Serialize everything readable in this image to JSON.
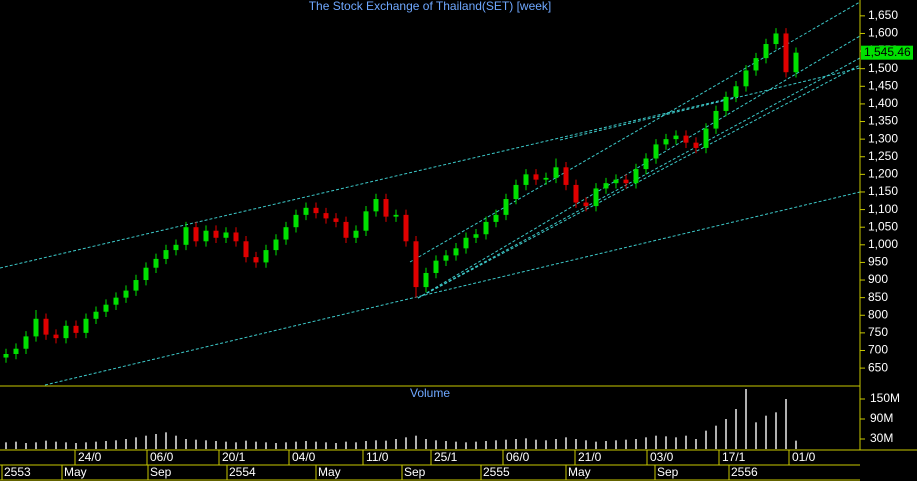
{
  "chart_data": {
    "type": "candlestick",
    "title": "The Stock Exchange of Thailand(SET) [week]",
    "open": [
      680,
      690,
      705,
      740,
      790,
      745,
      735,
      770,
      750,
      790,
      810,
      830,
      850,
      870,
      900,
      935,
      960,
      985,
      1000,
      1050,
      1010,
      1040,
      1020,
      1035,
      1010,
      965,
      950,
      985,
      1015,
      1050,
      1085,
      1105,
      1090,
      1075,
      1065,
      1020,
      1040,
      1095,
      1130,
      1080,
      1085,
      1010,
      880,
      920,
      955,
      970,
      990,
      1020,
      1030,
      1065,
      1085,
      1130,
      1170,
      1200,
      1185,
      1190,
      1220,
      1170,
      1120,
      1110,
      1160,
      1175,
      1185,
      1175,
      1215,
      1245,
      1285,
      1300,
      1310,
      1290,
      1275,
      1330,
      1380,
      1420,
      1450,
      1495,
      1530,
      1570,
      1600,
      1490
    ],
    "high": [
      705,
      720,
      755,
      815,
      805,
      760,
      785,
      785,
      805,
      825,
      845,
      865,
      885,
      915,
      950,
      975,
      1000,
      1015,
      1065,
      1065,
      1055,
      1055,
      1050,
      1050,
      1025,
      980,
      1000,
      1030,
      1065,
      1100,
      1120,
      1120,
      1105,
      1090,
      1080,
      1055,
      1110,
      1145,
      1145,
      1100,
      1100,
      1025,
      935,
      970,
      985,
      1005,
      1035,
      1045,
      1080,
      1100,
      1145,
      1185,
      1215,
      1215,
      1205,
      1245,
      1235,
      1185,
      1135,
      1175,
      1190,
      1200,
      1200,
      1230,
      1260,
      1300,
      1315,
      1325,
      1325,
      1305,
      1345,
      1395,
      1435,
      1465,
      1510,
      1545,
      1585,
      1615,
      1615,
      1560
    ],
    "low": [
      665,
      675,
      690,
      725,
      730,
      720,
      720,
      735,
      735,
      775,
      795,
      815,
      835,
      855,
      885,
      920,
      945,
      970,
      985,
      995,
      995,
      1005,
      1005,
      995,
      950,
      935,
      935,
      970,
      1000,
      1035,
      1070,
      1075,
      1060,
      1050,
      1005,
      1005,
      1025,
      1080,
      1065,
      1065,
      995,
      850,
      865,
      905,
      940,
      955,
      975,
      1005,
      1015,
      1050,
      1070,
      1115,
      1155,
      1170,
      1170,
      1175,
      1155,
      1105,
      1095,
      1095,
      1145,
      1160,
      1160,
      1160,
      1200,
      1230,
      1270,
      1285,
      1275,
      1260,
      1260,
      1315,
      1365,
      1405,
      1435,
      1480,
      1515,
      1555,
      1475,
      1475
    ],
    "close": [
      690,
      705,
      740,
      790,
      745,
      735,
      770,
      750,
      790,
      810,
      830,
      850,
      870,
      900,
      935,
      960,
      985,
      1000,
      1050,
      1010,
      1040,
      1020,
      1035,
      1010,
      965,
      950,
      985,
      1015,
      1050,
      1085,
      1105,
      1090,
      1075,
      1065,
      1020,
      1040,
      1095,
      1130,
      1080,
      1085,
      1010,
      880,
      920,
      955,
      970,
      990,
      1020,
      1030,
      1065,
      1085,
      1130,
      1170,
      1200,
      1185,
      1190,
      1220,
      1170,
      1120,
      1110,
      1160,
      1175,
      1185,
      1175,
      1215,
      1245,
      1285,
      1300,
      1310,
      1290,
      1275,
      1330,
      1380,
      1420,
      1450,
      1495,
      1530,
      1570,
      1600,
      1490,
      1545.46
    ],
    "last_label": "1,545.46",
    "up_color": "#00e000",
    "down_color": "#e00000",
    "ylim": [
      602,
      1695
    ],
    "yticks": [
      {
        "value": 1650,
        "label": "1,650"
      },
      {
        "value": 1600,
        "label": "1,600"
      },
      {
        "value": 1550,
        "label": "1,550"
      },
      {
        "value": 1500,
        "label": "1,500"
      },
      {
        "value": 1450,
        "label": "1,450"
      },
      {
        "value": 1400,
        "label": "1,400"
      },
      {
        "value": 1350,
        "label": "1,350"
      },
      {
        "value": 1300,
        "label": "1,300"
      },
      {
        "value": 1250,
        "label": "1,250"
      },
      {
        "value": 1200,
        "label": "1,200"
      },
      {
        "value": 1150,
        "label": "1,150"
      },
      {
        "value": 1100,
        "label": "1,100"
      },
      {
        "value": 1050,
        "label": "1,050"
      },
      {
        "value": 1000,
        "label": "1,000"
      },
      950,
      900,
      850,
      800,
      750,
      700,
      650
    ],
    "volume_title": "Volume",
    "volume": [
      20000000,
      22000000,
      18000000,
      20000000,
      25000000,
      22000000,
      20000000,
      18000000,
      20000000,
      22000000,
      24000000,
      26000000,
      30000000,
      35000000,
      40000000,
      45000000,
      50000000,
      40000000,
      30000000,
      28000000,
      26000000,
      24000000,
      22000000,
      20000000,
      25000000,
      22000000,
      20000000,
      18000000,
      20000000,
      22000000,
      24000000,
      22000000,
      20000000,
      18000000,
      22000000,
      20000000,
      24000000,
      26000000,
      25000000,
      30000000,
      35000000,
      40000000,
      30000000,
      26000000,
      24000000,
      22000000,
      20000000,
      22000000,
      24000000,
      26000000,
      28000000,
      30000000,
      32000000,
      28000000,
      26000000,
      30000000,
      35000000,
      30000000,
      26000000,
      22000000,
      24000000,
      26000000,
      28000000,
      30000000,
      35000000,
      40000000,
      38000000,
      35000000,
      40000000,
      30000000,
      55000000,
      70000000,
      90000000,
      120000000,
      180000000,
      80000000,
      100000000,
      110000000,
      150000000,
      25000000
    ],
    "volume_color": "#b0b0b0",
    "y2lim": [
      0,
      186000000
    ],
    "y2ticks": [
      {
        "value": 150000000,
        "label": "150M"
      },
      {
        "value": 90000000,
        "label": "90M"
      },
      {
        "value": 30000000,
        "label": "30M"
      }
    ],
    "x_labels": [
      "24/0",
      "06/0",
      "20/1",
      "04/0",
      "11/0",
      "25/1",
      "06/0",
      "21/0",
      "03/0",
      "17/1",
      "01/0"
    ],
    "period_labels": [
      "2553",
      "May",
      "Sep",
      "2554",
      "May",
      "Sep",
      "2555",
      "May",
      "Sep",
      "2556"
    ]
  }
}
